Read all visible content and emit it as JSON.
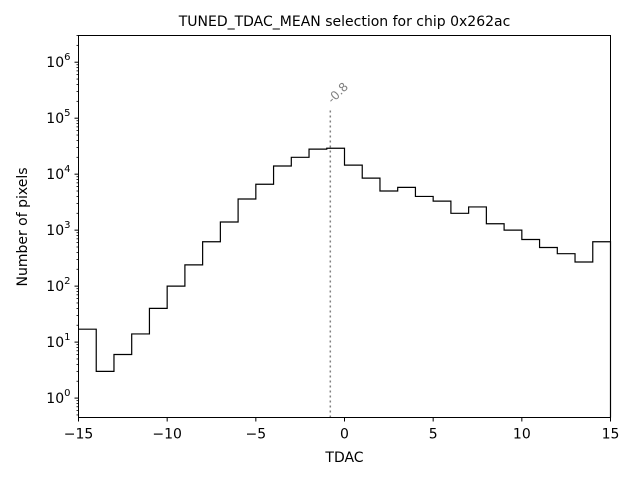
{
  "chart_data": {
    "type": "histogram",
    "title": "TUNED_TDAC_MEAN selection for chip 0x262ac",
    "xlabel": "TDAC",
    "ylabel": "Number of pixels",
    "xlim": [
      -15,
      15
    ],
    "ylim": [
      0.45,
      3000000
    ],
    "yscale": "log",
    "grid": false,
    "xticks": [
      -15,
      -10,
      -5,
      0,
      5,
      10,
      15
    ],
    "xtick_labels": [
      "−15",
      "−10",
      "−5",
      "0",
      "5",
      "10",
      "15"
    ],
    "yticks": [
      {
        "value": 1,
        "base": "10",
        "exp": "0"
      },
      {
        "value": 10,
        "base": "10",
        "exp": "1"
      },
      {
        "value": 100,
        "base": "10",
        "exp": "2"
      },
      {
        "value": 1000,
        "base": "10",
        "exp": "3"
      },
      {
        "value": 10000,
        "base": "10",
        "exp": "4"
      },
      {
        "value": 100000,
        "base": "10",
        "exp": "5"
      },
      {
        "value": 1000000,
        "base": "10",
        "exp": "6"
      }
    ],
    "bin_edges": [
      -15,
      -14,
      -13,
      -12,
      -11,
      -10,
      -9,
      -8,
      -7,
      -6,
      -5,
      -4,
      -3,
      -2,
      -1,
      0,
      1,
      2,
      3,
      4,
      5,
      6,
      7,
      8,
      9,
      10,
      11,
      12,
      13,
      14,
      15
    ],
    "counts": [
      17,
      3,
      6,
      14,
      40,
      100,
      240,
      620,
      1400,
      3600,
      6600,
      14000,
      20000,
      28000,
      29000,
      14500,
      8500,
      5000,
      5800,
      4000,
      3300,
      2000,
      2600,
      1300,
      1000,
      680,
      490,
      380,
      270,
      620
    ],
    "vline": {
      "x": -0.8,
      "label": "-0.8",
      "color": "#808080"
    },
    "colors": {
      "histogram": "#000000",
      "annotation": "#808080"
    }
  }
}
